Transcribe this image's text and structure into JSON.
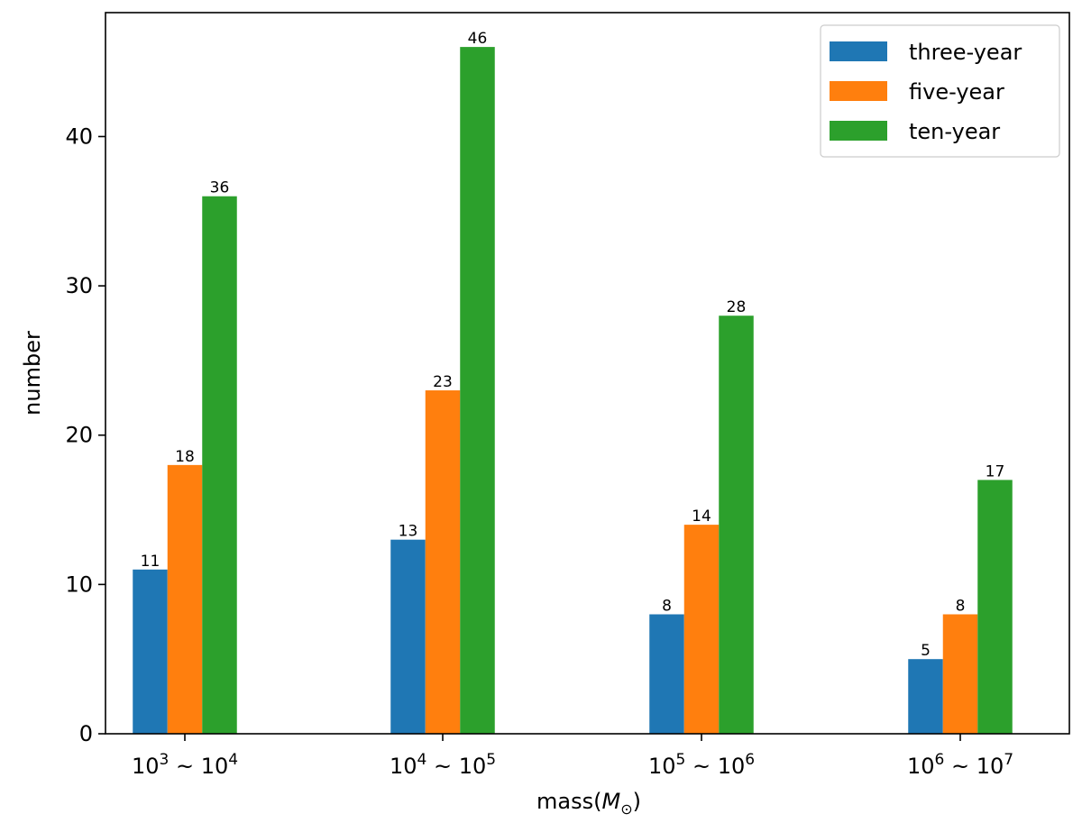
{
  "chart_data": {
    "type": "bar",
    "categories": [
      {
        "base1": "10",
        "exp1": "3",
        "base2": "10",
        "exp2": "4"
      },
      {
        "base1": "10",
        "exp1": "4",
        "base2": "10",
        "exp2": "5"
      },
      {
        "base1": "10",
        "exp1": "5",
        "base2": "10",
        "exp2": "6"
      },
      {
        "base1": "10",
        "exp1": "6",
        "base2": "10",
        "exp2": "7"
      }
    ],
    "series": [
      {
        "name": "three-year",
        "color": "#1f77b4",
        "values": [
          11,
          13,
          8,
          5
        ]
      },
      {
        "name": "five-year",
        "color": "#ff7f0e",
        "values": [
          18,
          23,
          14,
          8
        ]
      },
      {
        "name": "ten-year",
        "color": "#2ca02c",
        "values": [
          36,
          46,
          28,
          17
        ]
      }
    ],
    "xlabel": {
      "prefix": "mass(",
      "symbol": "M",
      "subscript": "⊙",
      "suffix": ")"
    },
    "ylabel": "number",
    "ylim": [
      0,
      48.3
    ],
    "yticks": [
      0,
      10,
      20,
      30,
      40
    ],
    "legend": "top-right",
    "grid": false,
    "show_data_labels": true
  }
}
